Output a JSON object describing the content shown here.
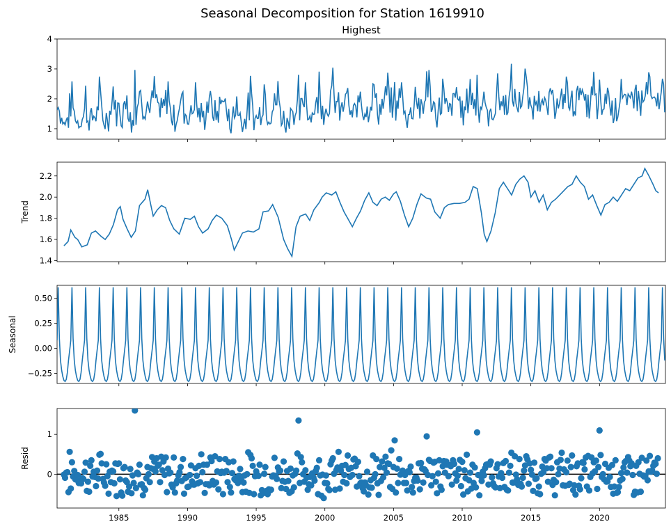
{
  "chart_data": {
    "type": "line",
    "title": "Seasonal Decomposition for Station 1619910",
    "xlim": [
      1980.5,
      2024.8
    ],
    "x_ticks": [
      1985,
      1990,
      1995,
      2000,
      2005,
      2010,
      2015,
      2020
    ],
    "x_tick_labels": [
      "1985",
      "1990",
      "1995",
      "2000",
      "2005",
      "2010",
      "2015",
      "2020"
    ],
    "panels": [
      {
        "id": "observed",
        "kind": "line",
        "title": "Highest",
        "ylabel": "",
        "ylim": [
          0.65,
          4.0
        ],
        "y_ticks": [
          1,
          2,
          3,
          4
        ],
        "y_tick_labels": [
          "1",
          "2",
          "3",
          "4"
        ],
        "series": {
          "name": "Highest",
          "start_year": 1980.5,
          "step": 0.08333,
          "values": []
        }
      },
      {
        "id": "trend",
        "kind": "line",
        "title": "",
        "ylabel": "Trend",
        "ylim": [
          1.39,
          2.33
        ],
        "y_ticks": [
          1.4,
          1.6,
          1.8,
          2.0,
          2.2
        ],
        "y_tick_labels": [
          "1.4",
          "1.6",
          "1.8",
          "2.0",
          "2.2"
        ],
        "series": {
          "name": "Trend",
          "points": [
            [
              1981.0,
              1.54
            ],
            [
              1981.3,
              1.58
            ],
            [
              1981.5,
              1.69
            ],
            [
              1981.8,
              1.62
            ],
            [
              1982.0,
              1.6
            ],
            [
              1982.3,
              1.53
            ],
            [
              1982.7,
              1.55
            ],
            [
              1983.0,
              1.66
            ],
            [
              1983.3,
              1.68
            ],
            [
              1983.7,
              1.63
            ],
            [
              1984.0,
              1.6
            ],
            [
              1984.3,
              1.65
            ],
            [
              1984.6,
              1.74
            ],
            [
              1984.9,
              1.88
            ],
            [
              1985.1,
              1.91
            ],
            [
              1985.3,
              1.79
            ],
            [
              1985.6,
              1.7
            ],
            [
              1985.9,
              1.62
            ],
            [
              1986.2,
              1.68
            ],
            [
              1986.5,
              1.92
            ],
            [
              1986.9,
              1.98
            ],
            [
              1987.1,
              2.07
            ],
            [
              1987.3,
              1.94
            ],
            [
              1987.5,
              1.82
            ],
            [
              1987.8,
              1.88
            ],
            [
              1988.1,
              1.92
            ],
            [
              1988.4,
              1.9
            ],
            [
              1988.7,
              1.78
            ],
            [
              1989.0,
              1.7
            ],
            [
              1989.4,
              1.65
            ],
            [
              1989.8,
              1.8
            ],
            [
              1990.2,
              1.79
            ],
            [
              1990.5,
              1.82
            ],
            [
              1990.8,
              1.72
            ],
            [
              1991.1,
              1.66
            ],
            [
              1991.5,
              1.7
            ],
            [
              1991.8,
              1.78
            ],
            [
              1992.1,
              1.83
            ],
            [
              1992.5,
              1.8
            ],
            [
              1992.9,
              1.73
            ],
            [
              1993.2,
              1.6
            ],
            [
              1993.4,
              1.5
            ],
            [
              1993.7,
              1.58
            ],
            [
              1994.0,
              1.66
            ],
            [
              1994.4,
              1.68
            ],
            [
              1994.8,
              1.67
            ],
            [
              1995.2,
              1.7
            ],
            [
              1995.5,
              1.86
            ],
            [
              1995.9,
              1.87
            ],
            [
              1996.2,
              1.93
            ],
            [
              1996.6,
              1.81
            ],
            [
              1997.0,
              1.6
            ],
            [
              1997.3,
              1.51
            ],
            [
              1997.6,
              1.44
            ],
            [
              1997.9,
              1.72
            ],
            [
              1998.2,
              1.82
            ],
            [
              1998.6,
              1.84
            ],
            [
              1998.9,
              1.78
            ],
            [
              1999.2,
              1.88
            ],
            [
              1999.6,
              1.95
            ],
            [
              1999.8,
              2.0
            ],
            [
              2000.1,
              2.04
            ],
            [
              2000.5,
              2.02
            ],
            [
              2000.8,
              2.05
            ],
            [
              2001.1,
              1.95
            ],
            [
              2001.4,
              1.86
            ],
            [
              2001.7,
              1.79
            ],
            [
              2002.0,
              1.72
            ],
            [
              2002.3,
              1.8
            ],
            [
              2002.6,
              1.87
            ],
            [
              2002.9,
              1.97
            ],
            [
              2003.2,
              2.04
            ],
            [
              2003.5,
              1.95
            ],
            [
              2003.8,
              1.92
            ],
            [
              2004.1,
              1.98
            ],
            [
              2004.4,
              2.0
            ],
            [
              2004.7,
              1.97
            ],
            [
              2005.0,
              2.03
            ],
            [
              2005.2,
              2.05
            ],
            [
              2005.5,
              1.96
            ],
            [
              2005.8,
              1.83
            ],
            [
              2006.1,
              1.72
            ],
            [
              2006.4,
              1.8
            ],
            [
              2006.7,
              1.93
            ],
            [
              2007.0,
              2.03
            ],
            [
              2007.4,
              1.99
            ],
            [
              2007.7,
              1.98
            ],
            [
              2008.0,
              1.86
            ],
            [
              2008.4,
              1.8
            ],
            [
              2008.7,
              1.9
            ],
            [
              2009.0,
              1.93
            ],
            [
              2009.4,
              1.94
            ],
            [
              2009.8,
              1.94
            ],
            [
              2010.2,
              1.95
            ],
            [
              2010.5,
              1.98
            ],
            [
              2010.8,
              2.1
            ],
            [
              2011.1,
              2.08
            ],
            [
              2011.4,
              1.85
            ],
            [
              2011.6,
              1.65
            ],
            [
              2011.8,
              1.58
            ],
            [
              2012.1,
              1.68
            ],
            [
              2012.4,
              1.85
            ],
            [
              2012.7,
              2.08
            ],
            [
              2013.0,
              2.14
            ],
            [
              2013.3,
              2.08
            ],
            [
              2013.6,
              2.02
            ],
            [
              2013.9,
              2.12
            ],
            [
              2014.2,
              2.17
            ],
            [
              2014.5,
              2.2
            ],
            [
              2014.8,
              2.14
            ],
            [
              2015.0,
              2.0
            ],
            [
              2015.3,
              2.06
            ],
            [
              2015.6,
              1.95
            ],
            [
              2015.9,
              2.02
            ],
            [
              2016.2,
              1.88
            ],
            [
              2016.5,
              1.95
            ],
            [
              2016.8,
              1.98
            ],
            [
              2017.1,
              2.02
            ],
            [
              2017.4,
              2.06
            ],
            [
              2017.7,
              2.1
            ],
            [
              2018.0,
              2.12
            ],
            [
              2018.3,
              2.2
            ],
            [
              2018.6,
              2.14
            ],
            [
              2018.9,
              2.1
            ],
            [
              2019.2,
              1.98
            ],
            [
              2019.5,
              2.02
            ],
            [
              2019.8,
              1.92
            ],
            [
              2020.1,
              1.83
            ],
            [
              2020.4,
              1.93
            ],
            [
              2020.7,
              1.95
            ],
            [
              2021.0,
              2.0
            ],
            [
              2021.3,
              1.96
            ],
            [
              2021.6,
              2.02
            ],
            [
              2021.9,
              2.08
            ],
            [
              2022.2,
              2.06
            ],
            [
              2022.5,
              2.12
            ],
            [
              2022.8,
              2.18
            ],
            [
              2023.1,
              2.2
            ],
            [
              2023.3,
              2.27
            ],
            [
              2023.6,
              2.2
            ],
            [
              2023.9,
              2.12
            ],
            [
              2024.1,
              2.06
            ],
            [
              2024.3,
              2.04
            ]
          ]
        }
      },
      {
        "id": "seasonal",
        "kind": "line",
        "title": "",
        "ylabel": "Seasonal",
        "ylim": [
          -0.35,
          0.63
        ],
        "y_ticks": [
          -0.25,
          0.0,
          0.25,
          0.5
        ],
        "y_tick_labels": [
          "−0.25",
          "0.00",
          "0.25",
          "0.50"
        ],
        "series": {
          "name": "Seasonal",
          "start_year": 1980.5,
          "end_year": 2024.75,
          "cycle_values": [
            0.08,
            0.61,
            0.1,
            -0.12,
            -0.22,
            -0.28,
            -0.32,
            -0.33,
            -0.31,
            -0.24,
            -0.12,
            -0.02
          ]
        }
      },
      {
        "id": "resid",
        "kind": "scatter",
        "title": "",
        "ylabel": "Resid",
        "ylim": [
          -0.85,
          1.65
        ],
        "y_ticks": [
          0,
          1
        ],
        "y_tick_labels": [
          "0",
          "1"
        ],
        "zero_line": true,
        "series": {
          "name": "Resid",
          "points": []
        }
      }
    ]
  },
  "colors": {
    "line": "#1f77b4",
    "axis": "#000000",
    "zero": "#000000"
  }
}
